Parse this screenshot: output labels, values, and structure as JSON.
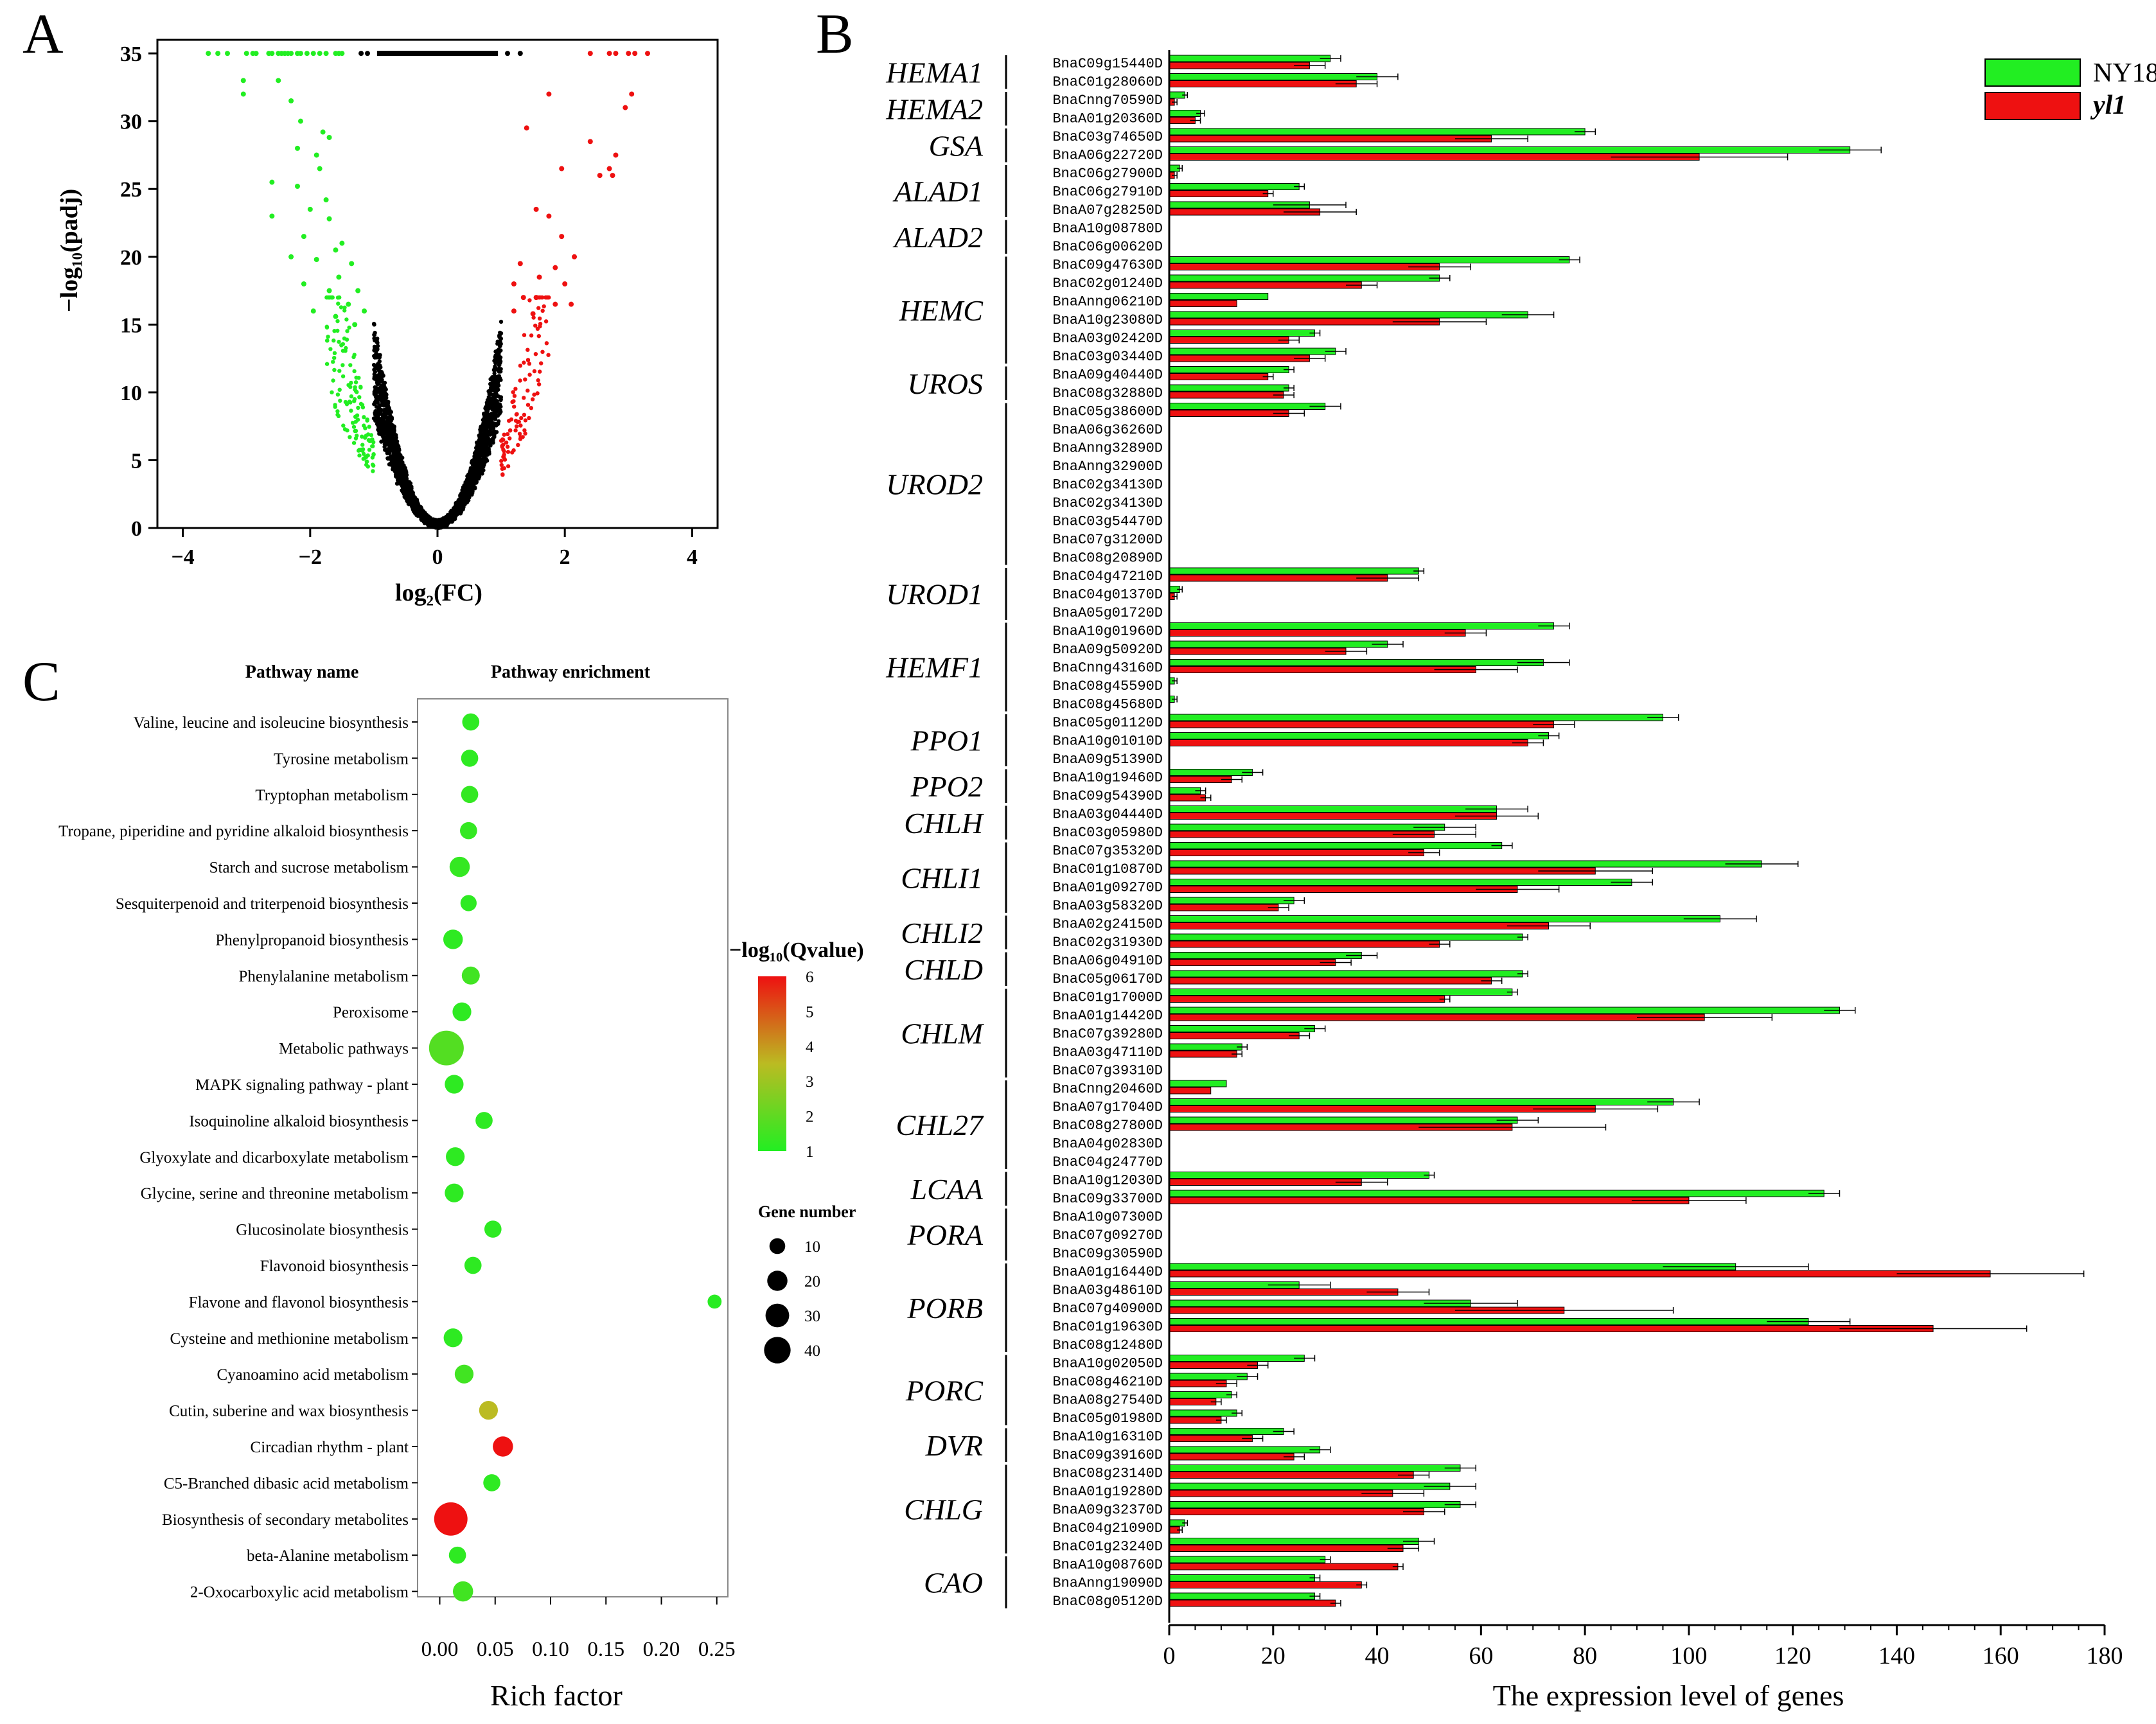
{
  "figure": {
    "panel_labels": [
      "A",
      "B",
      "C"
    ]
  },
  "colors": {
    "green": "#22ee22",
    "red": "#ee1111",
    "black": "#000000"
  },
  "chart_data": [
    {
      "id": "A",
      "type": "scatter",
      "title": "",
      "xlabel": "log₂(FC)",
      "ylabel": "−log₁₀(padj)",
      "xlim": [
        -4.4,
        4.4
      ],
      "ylim": [
        0,
        36
      ],
      "x_ticks": [
        "−4",
        "−2",
        "0",
        "2",
        "4"
      ],
      "y_ticks": [
        "0",
        "5",
        "10",
        "15",
        "20",
        "25",
        "30",
        "35"
      ],
      "grid": false,
      "series": [
        {
          "name": "not significant",
          "color": "#000000"
        },
        {
          "name": "down-regulated",
          "color": "#22ee22"
        },
        {
          "name": "up-regulated",
          "color": "#ee1111"
        }
      ],
      "capped_points": {
        "y": 35,
        "green_x": [
          -3.6,
          -3.45,
          -3.3,
          -3.0,
          -2.9,
          -2.85,
          -2.65,
          -2.6,
          -2.5,
          -2.45,
          -2.4,
          -2.35,
          -2.3,
          -2.2,
          -2.15,
          -2.05,
          -1.95,
          -1.85,
          -1.75,
          -1.6,
          -1.55,
          -1.5
        ],
        "red_x": [
          2.4,
          2.7,
          2.8,
          3.0,
          3.1,
          3.3
        ],
        "black_x_range": [
          -0.95,
          0.95
        ]
      },
      "scattered_points": {
        "green": [
          [
            -3.05,
            33
          ],
          [
            -2.5,
            33
          ],
          [
            -2.3,
            31.5
          ],
          [
            -3.05,
            32
          ],
          [
            -2.15,
            30
          ],
          [
            -1.8,
            29.2
          ],
          [
            -1.7,
            28.8
          ],
          [
            -2.2,
            28
          ],
          [
            -1.9,
            27.5
          ],
          [
            -2.6,
            25.5
          ],
          [
            -2.2,
            25.2
          ],
          [
            -1.85,
            26.5
          ],
          [
            -2.0,
            23.5
          ],
          [
            -2.6,
            23
          ],
          [
            -1.75,
            24.2
          ],
          [
            -1.7,
            22.8
          ],
          [
            -2.1,
            21.5
          ],
          [
            -1.6,
            20.5
          ],
          [
            -1.5,
            21
          ],
          [
            -1.35,
            19.5
          ],
          [
            -2.3,
            20
          ],
          [
            -1.9,
            19.8
          ],
          [
            -1.55,
            18.5
          ],
          [
            -1.25,
            17.5
          ],
          [
            -2.1,
            18
          ],
          [
            -1.7,
            17.5
          ],
          [
            -1.4,
            16.5
          ],
          [
            -1.95,
            16
          ],
          [
            -1.6,
            15.6
          ],
          [
            -1.3,
            15
          ],
          [
            -1.15,
            16
          ]
        ],
        "red": [
          [
            1.75,
            32
          ],
          [
            3.05,
            32
          ],
          [
            1.4,
            29.5
          ],
          [
            2.95,
            31
          ],
          [
            2.4,
            28.5
          ],
          [
            2.8,
            27.5
          ],
          [
            2.7,
            26.5
          ],
          [
            2.55,
            26
          ],
          [
            1.95,
            26.5
          ],
          [
            2.75,
            26
          ],
          [
            1.55,
            23.5
          ],
          [
            1.75,
            23
          ],
          [
            1.95,
            21.5
          ],
          [
            2.15,
            20
          ],
          [
            1.3,
            19.5
          ],
          [
            1.85,
            19.2
          ],
          [
            1.6,
            18.5
          ],
          [
            1.2,
            18
          ],
          [
            2.0,
            18
          ],
          [
            1.55,
            17
          ],
          [
            1.35,
            17
          ],
          [
            2.1,
            16.5
          ],
          [
            1.85,
            16.5
          ],
          [
            1.2,
            16
          ],
          [
            1.5,
            15.8
          ]
        ]
      }
    },
    {
      "id": "B",
      "type": "bar",
      "orientation": "horizontal",
      "title": "",
      "xlabel": "The expression level of genes",
      "ylabel": "",
      "xlim": [
        0,
        180
      ],
      "x_ticks": [
        0,
        20,
        40,
        60,
        80,
        100,
        120,
        140,
        160,
        180
      ],
      "legend": {
        "position": "top-right",
        "entries": [
          {
            "name": "NY18",
            "color": "#22ee22",
            "italic": false
          },
          {
            "name": "yl1",
            "color": "#ee1111",
            "italic": true
          }
        ]
      },
      "groups": [
        {
          "name": "HEMA1",
          "genes": [
            "BnaC09g15440D",
            "BnaC01g28060D"
          ]
        },
        {
          "name": "HEMA2",
          "genes": [
            "BnaCnng70590D",
            "BnaA01g20360D"
          ]
        },
        {
          "name": "GSA",
          "genes": [
            "BnaC03g74650D",
            "BnaA06g22720D"
          ]
        },
        {
          "name": "ALAD1",
          "genes": [
            "BnaC06g27900D",
            "BnaC06g27910D",
            "BnaA07g28250D"
          ]
        },
        {
          "name": "ALAD2",
          "genes": [
            "BnaA10g08780D",
            "BnaC06g00620D"
          ]
        },
        {
          "name": "HEMC",
          "genes": [
            "BnaC09g47630D",
            "BnaC02g01240D",
            "BnaAnng06210D",
            "BnaA10g23080D",
            "BnaA03g02420D",
            "BnaC03g03440D"
          ]
        },
        {
          "name": "UROS",
          "genes": [
            "BnaA09g40440D",
            "BnaC08g32880D"
          ]
        },
        {
          "name": "UROD2",
          "genes": [
            "BnaC05g38600D",
            "BnaA06g36260D",
            "BnaAnng32890D",
            "BnaAnng32900D",
            "BnaC02g34130D",
            "BnaC02g34130D",
            "BnaC03g54470D",
            "BnaC07g31200D",
            "BnaC08g20890D"
          ]
        },
        {
          "name": "UROD1",
          "genes": [
            "BnaC04g47210D",
            "BnaC04g01370D",
            "BnaA05g01720D"
          ]
        },
        {
          "name": "HEMF1",
          "genes": [
            "BnaA10g01960D",
            "BnaA09g50920D",
            "BnaCnng43160D",
            "BnaC08g45590D",
            "BnaC08g45680D"
          ]
        },
        {
          "name": "PPO1",
          "genes": [
            "BnaC05g01120D",
            "BnaA10g01010D",
            "BnaA09g51390D"
          ]
        },
        {
          "name": "PPO2",
          "genes": [
            "BnaA10g19460D",
            "BnaC09g54390D"
          ]
        },
        {
          "name": "CHLH",
          "genes": [
            "BnaA03g04440D",
            "BnaC03g05980D"
          ]
        },
        {
          "name": "CHLI1",
          "genes": [
            "BnaC07g35320D",
            "BnaC01g10870D",
            "BnaA01g09270D",
            "BnaA03g58320D"
          ]
        },
        {
          "name": "CHLI2",
          "genes": [
            "BnaA02g24150D",
            "BnaC02g31930D"
          ]
        },
        {
          "name": "CHLD",
          "genes": [
            "BnaA06g04910D",
            "BnaC05g06170D"
          ]
        },
        {
          "name": "CHLM",
          "genes": [
            "BnaC01g17000D",
            "BnaA01g14420D",
            "BnaC07g39280D",
            "BnaA03g47110D",
            "BnaC07g39310D"
          ]
        },
        {
          "name": "CHL27",
          "genes": [
            "BnaCnng20460D",
            "BnaA07g17040D",
            "BnaC08g27800D",
            "BnaA04g02830D",
            "BnaC04g24770D"
          ]
        },
        {
          "name": "LCAA",
          "genes": [
            "BnaA10g12030D",
            "BnaC09g33700D"
          ]
        },
        {
          "name": "PORA",
          "genes": [
            "BnaA10g07300D",
            "BnaC07g09270D",
            "BnaC09g30590D"
          ]
        },
        {
          "name": "PORB",
          "genes": [
            "BnaA01g16440D",
            "BnaA03g48610D",
            "BnaC07g40900D",
            "BnaC01g19630D",
            "BnaC08g12480D"
          ]
        },
        {
          "name": "PORC",
          "genes": [
            "BnaA10g02050D",
            "BnaC08g46210D",
            "BnaA08g27540D",
            "BnaC05g01980D"
          ]
        },
        {
          "name": "DVR",
          "genes": [
            "BnaA10g16310D",
            "BnaC09g39160D"
          ]
        },
        {
          "name": "CHLG",
          "genes": [
            "BnaC08g23140D",
            "BnaA01g19280D",
            "BnaA09g32370D",
            "BnaC04g21090D",
            "BnaC01g23240D"
          ]
        },
        {
          "name": "CAO",
          "genes": [
            "BnaA10g08760D",
            "BnaAnng19090D",
            "BnaC08g05120D"
          ]
        }
      ],
      "series": [
        {
          "name": "NY18",
          "values": [
            31,
            40,
            3,
            6,
            80,
            131,
            2,
            25,
            27,
            0,
            0,
            77,
            52,
            19,
            69,
            28,
            32,
            23,
            23,
            30,
            0,
            0,
            0,
            0,
            0,
            0,
            0,
            0,
            48,
            2,
            0,
            74,
            42,
            72,
            1,
            1,
            95,
            73,
            0,
            16,
            6,
            63,
            53,
            64,
            114,
            89,
            24,
            106,
            68,
            37,
            68,
            66,
            129,
            28,
            14,
            0,
            11,
            97,
            67,
            0,
            0,
            50,
            126,
            0,
            0,
            0,
            109,
            25,
            58,
            123,
            0,
            26,
            15,
            12,
            13,
            22,
            29,
            56,
            54,
            56,
            3,
            48,
            30,
            28,
            28
          ]
        },
        {
          "name": "yl1",
          "values": [
            27,
            36,
            1,
            5,
            62,
            102,
            1,
            19,
            29,
            0,
            0,
            52,
            37,
            13,
            52,
            23,
            27,
            19,
            22,
            23,
            0,
            0,
            0,
            0,
            0,
            0,
            0,
            0,
            42,
            1,
            0,
            57,
            34,
            59,
            0,
            0,
            74,
            69,
            0,
            12,
            7,
            63,
            51,
            49,
            82,
            67,
            21,
            73,
            52,
            32,
            62,
            53,
            103,
            25,
            13,
            0,
            8,
            82,
            66,
            0,
            0,
            37,
            100,
            0,
            0,
            0,
            158,
            44,
            76,
            147,
            0,
            17,
            11,
            9,
            10,
            16,
            24,
            47,
            43,
            49,
            2,
            45,
            44,
            37,
            32
          ]
        },
        {
          "name": "NY18_err",
          "values": [
            2,
            4,
            0.5,
            0.8,
            2,
            6,
            0.5,
            1,
            7,
            0,
            0,
            2,
            2,
            0,
            5,
            1,
            2,
            1,
            1,
            3,
            0,
            0,
            0,
            0,
            0,
            0,
            0,
            0,
            1,
            0.5,
            0,
            3,
            3,
            5,
            0.5,
            0.5,
            3,
            2,
            0,
            2,
            1,
            6,
            6,
            2,
            7,
            4,
            2,
            7,
            1,
            3,
            1,
            1,
            3,
            2,
            1,
            0,
            0,
            5,
            4,
            0,
            0,
            1,
            3,
            0,
            0,
            0,
            14,
            6,
            9,
            8,
            0,
            2,
            2,
            1,
            1,
            2,
            2,
            3,
            5,
            3,
            0.5,
            3,
            1,
            1,
            1
          ]
        },
        {
          "name": "yl1_err",
          "values": [
            3,
            4,
            0.5,
            1,
            7,
            17,
            0.5,
            1,
            7,
            0,
            0,
            6,
            3,
            0,
            9,
            2,
            3,
            1,
            2,
            3,
            0,
            0,
            0,
            0,
            0,
            0,
            0,
            0,
            6,
            0.5,
            0,
            4,
            4,
            8,
            0.5,
            0.5,
            4,
            3,
            0,
            2,
            1,
            8,
            8,
            3,
            11,
            8,
            2,
            8,
            2,
            3,
            2,
            1,
            13,
            2,
            1,
            0,
            0,
            12,
            18,
            0,
            0,
            5,
            11,
            0,
            0,
            0,
            18,
            6,
            21,
            18,
            0,
            2,
            2,
            1,
            1,
            2,
            2,
            3,
            6,
            4,
            0.5,
            3,
            1,
            1,
            1
          ]
        }
      ]
    },
    {
      "id": "C",
      "type": "scatter",
      "subtype": "bubble",
      "title": "",
      "header_left": "Pathway name",
      "header_right": "Pathway enrichment",
      "xlabel": "Rich factor",
      "xlim": [
        -0.02,
        0.26
      ],
      "x_ticks": [
        "0.00",
        "0.05",
        "0.10",
        "0.15",
        "0.20",
        "0.25"
      ],
      "categories": [
        "Valine, leucine and isoleucine biosynthesis",
        "Tyrosine metabolism",
        "Tryptophan metabolism",
        "Tropane, piperidine and pyridine alkaloid biosynthesis",
        "Starch and sucrose metabolism",
        "Sesquiterpenoid and triterpenoid biosynthesis",
        "Phenylpropanoid biosynthesis",
        "Phenylalanine metabolism",
        "Peroxisome",
        "Metabolic pathways",
        "MAPK signaling pathway - plant",
        "Isoquinoline alkaloid biosynthesis",
        "Glyoxylate and dicarboxylate metabolism",
        "Glycine, serine and threonine metabolism",
        "Glucosinolate biosynthesis",
        "Flavonoid biosynthesis",
        "Flavone and flavonol biosynthesis",
        "Cysteine and methionine metabolism",
        "Cyanoamino acid metabolism",
        "Cutin, suberine and wax biosynthesis",
        "Circadian rhythm - plant",
        "C5-Branched dibasic acid metabolism",
        "Biosynthesis of secondary metabolites",
        "beta-Alanine metabolism",
        "2-Oxocarboxylic acid metabolism"
      ],
      "rich_factor": [
        0.028,
        0.027,
        0.027,
        0.026,
        0.018,
        0.026,
        0.012,
        0.028,
        0.02,
        0.006,
        0.013,
        0.04,
        0.014,
        0.013,
        0.048,
        0.03,
        0.248,
        0.012,
        0.022,
        0.044,
        0.057,
        0.047,
        0.01,
        0.016,
        0.021
      ],
      "gene_number": [
        6,
        6,
        6,
        6,
        10,
        5,
        9,
        7,
        8,
        42,
        8,
        6,
        8,
        8,
        6,
        6,
        3,
        8,
        8,
        8,
        10,
        6,
        38,
        6,
        10
      ],
      "qvalue_neglog10": [
        1.2,
        1.2,
        1.3,
        1.3,
        1.3,
        1.2,
        1.2,
        1.5,
        1.2,
        1.8,
        1.2,
        1.2,
        1.2,
        1.2,
        1.2,
        1.2,
        1.1,
        1.2,
        1.5,
        3.5,
        6,
        1.2,
        6,
        1.2,
        1.5
      ],
      "colorbar": {
        "title": "−log₁₀(Qvalue)",
        "ticks": [
          "1",
          "2",
          "3",
          "4",
          "5",
          "6"
        ]
      },
      "size_legend": {
        "title": "Gene number",
        "ticks": [
          10,
          20,
          30,
          40
        ]
      }
    }
  ]
}
